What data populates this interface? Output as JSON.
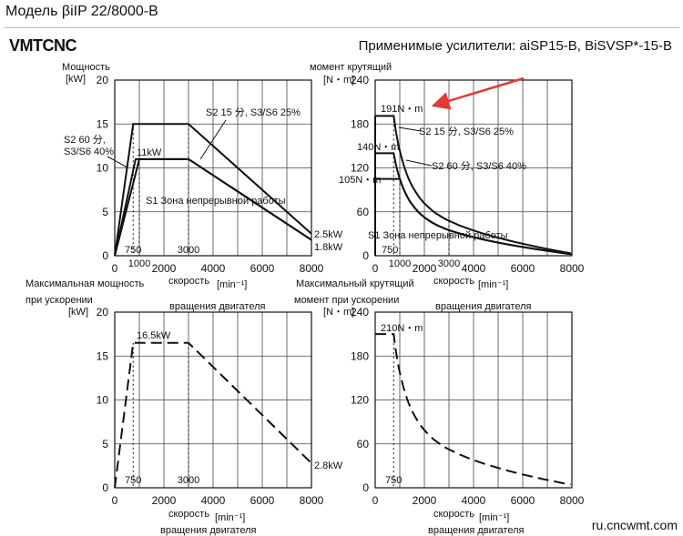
{
  "page": {
    "title": "Модель βiIP 22/8000-B",
    "logo": "VMTCNC",
    "amplifiers": "Применимые усилители: aiSP15-B, BiSVSP*-15-B",
    "watermark": "ru.cncwmt.com"
  },
  "chart_data": [
    {
      "id": "power",
      "type": "line",
      "ylabel": [
        "Мощность",
        "[kW]"
      ],
      "xlabel": [
        "скорость",
        "[min⁻¹]",
        "вращения двигателя"
      ],
      "xlim": [
        0,
        8000
      ],
      "ylim": [
        0,
        20
      ],
      "xticks": [
        "0",
        "2000",
        "4000",
        "6000",
        "8000"
      ],
      "yticks": [
        "0",
        "5",
        "10",
        "15",
        "20"
      ],
      "grid": true,
      "series": [
        {
          "name": "S2 15 分, S3/S6 25%",
          "style": "solid",
          "x": [
            0,
            750,
            3000,
            8000
          ],
          "y": [
            0,
            15,
            15,
            2.5
          ]
        },
        {
          "name": "S2 60 分, S3/S6 40%",
          "style": "solid",
          "x": [
            0,
            850,
            3000,
            8000
          ],
          "y": [
            0,
            11,
            11,
            1.8
          ]
        },
        {
          "name": "S1 Зона непрерывной работы",
          "style": "solid",
          "x": [
            0,
            1000,
            3000,
            8000
          ],
          "y": [
            0,
            11,
            11,
            1.8
          ]
        }
      ],
      "markers": [
        {
          "x": 750,
          "label": "750"
        },
        {
          "x": 1000,
          "label": "1000"
        },
        {
          "x": 3000,
          "label": "3000"
        }
      ],
      "annotations": [
        {
          "text": "S2 15 分, S3/S6 25%"
        },
        {
          "text": "S2 60 分,"
        },
        {
          "text": "S3/S6 40%"
        },
        {
          "text": "11kW"
        },
        {
          "text": "S1 Зона непрерывной работы"
        },
        {
          "text": "2.5kW"
        },
        {
          "text": "1.8kW"
        }
      ]
    },
    {
      "id": "torque",
      "type": "line",
      "ylabel": [
        "момент крутящий",
        "[N・m]"
      ],
      "xlabel": [
        "скорость",
        "[min⁻¹]",
        "вращения двигателя"
      ],
      "xlim": [
        0,
        8000
      ],
      "ylim": [
        0,
        240
      ],
      "xticks": [
        "0",
        "2000",
        "4000",
        "6000",
        "8000"
      ],
      "yticks": [
        "0",
        "60",
        "120",
        "180",
        "240"
      ],
      "grid": true,
      "series": [
        {
          "name": "S2 15 分, S3/S6 25%",
          "style": "solid",
          "flat": 191,
          "knee": 750,
          "end": 3
        },
        {
          "name": "S2 60 分, S3/S6 40%",
          "style": "solid",
          "flat": 140,
          "knee": 750,
          "end": 2
        },
        {
          "name": "S1 Зона непрерывной работы",
          "style": "solid",
          "flat": 105,
          "knee": 1000,
          "end": 2
        }
      ],
      "markers": [
        {
          "x": 750,
          "label": "750"
        },
        {
          "x": 1000,
          "label": "1000"
        },
        {
          "x": 3000,
          "label": "3000"
        }
      ],
      "annotations": [
        {
          "text": "191N・m"
        },
        {
          "text": "140N・m"
        },
        {
          "text": "105N・m"
        },
        {
          "text": "S2 15 分, S3/S6 25%"
        },
        {
          "text": "S2 60 分, S3/S6 40%"
        },
        {
          "text": "S1 Зона непрерывной работы"
        }
      ]
    },
    {
      "id": "max-power",
      "type": "line",
      "ylabel": [
        "Максимальная мощность",
        "при ускорении",
        "[kW]"
      ],
      "xlabel": [
        "скорость",
        "[min⁻¹]",
        "вращения двигателя"
      ],
      "xlim": [
        0,
        8000
      ],
      "ylim": [
        0,
        20
      ],
      "xticks": [
        "0",
        "2000",
        "4000",
        "6000",
        "8000"
      ],
      "yticks": [
        "0",
        "5",
        "10",
        "15",
        "20"
      ],
      "grid": true,
      "series": [
        {
          "style": "dashed",
          "x": [
            0,
            750,
            3000,
            8000
          ],
          "y": [
            0,
            16.5,
            16.5,
            2.8
          ]
        }
      ],
      "markers": [
        {
          "x": 750,
          "label": "750"
        },
        {
          "x": 3000,
          "label": "3000"
        }
      ],
      "annotations": [
        {
          "text": "16.5kW"
        },
        {
          "text": "2.8kW"
        }
      ]
    },
    {
      "id": "max-torque",
      "type": "line",
      "ylabel": [
        "Максимальный крутящий",
        "момент при ускорении",
        "[N・m]"
      ],
      "xlabel": [
        "скорость",
        "[min⁻¹]",
        "вращения двигателя"
      ],
      "xlim": [
        0,
        8000
      ],
      "ylim": [
        0,
        240
      ],
      "xticks": [
        "0",
        "2000",
        "4000",
        "6000",
        "8000"
      ],
      "yticks": [
        "0",
        "60",
        "120",
        "180",
        "240"
      ],
      "grid": true,
      "series": [
        {
          "style": "dashed",
          "flat": 210,
          "knee": 750,
          "end": 4
        }
      ],
      "markers": [
        {
          "x": 750,
          "label": "750"
        }
      ],
      "annotations": [
        {
          "text": "210N・m"
        }
      ]
    }
  ]
}
